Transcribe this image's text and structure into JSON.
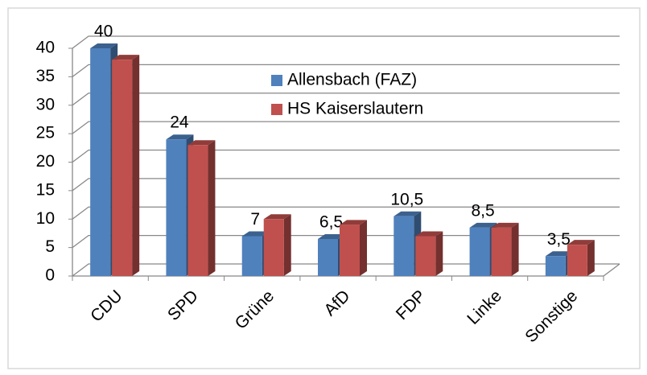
{
  "chart_data": {
    "type": "bar3d",
    "categories": [
      "CDU",
      "SPD",
      "Grüne",
      "AfD",
      "FDP",
      "Linke",
      "Sonstige"
    ],
    "series": [
      {
        "name": "Allensbach (FAZ)",
        "color": "#4f81bd",
        "values": [
          40,
          24,
          7,
          6.5,
          10.5,
          8.5,
          3.5
        ],
        "value_labels": [
          "40",
          "24",
          "7",
          "6,5",
          "10,5",
          "8,5",
          "3,5"
        ]
      },
      {
        "name": "HS Kaiserslautern",
        "color": "#c0504d",
        "values": [
          38,
          23,
          10,
          9,
          7,
          8.5,
          5.5
        ]
      }
    ],
    "ylim": [
      0,
      40
    ],
    "yticks": [
      0,
      5,
      10,
      15,
      20,
      25,
      30,
      35,
      40
    ],
    "grid": true
  }
}
